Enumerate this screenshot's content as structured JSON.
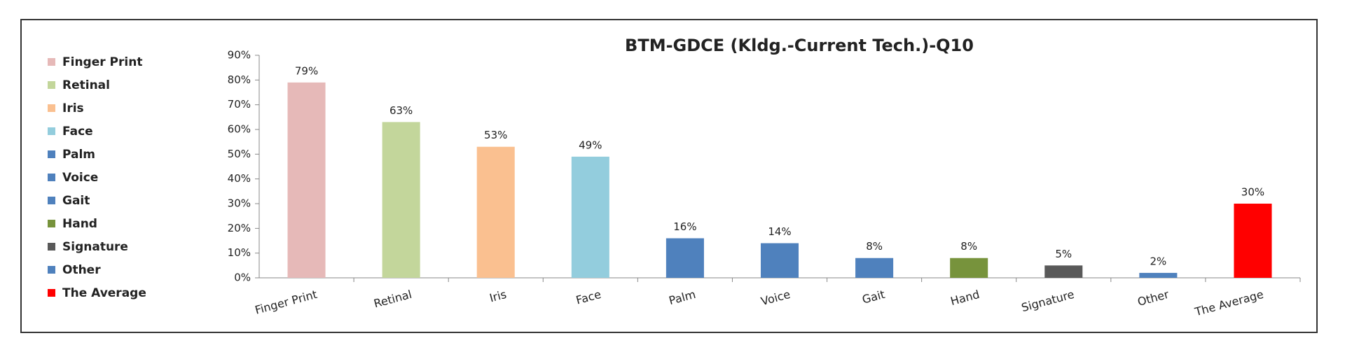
{
  "chart_data": {
    "type": "bar",
    "title": "BTM-GDCE  (Kldg.-Current Tech.)-Q10",
    "categories": [
      "Finger Print",
      "Retinal",
      "Iris",
      "Face",
      "Palm",
      "Voice",
      "Gait",
      "Hand",
      "Signature",
      "Other",
      "The Average"
    ],
    "values": [
      79,
      63,
      53,
      49,
      16,
      14,
      8,
      8,
      5,
      2,
      30
    ],
    "value_labels": [
      "79%",
      "63%",
      "53%",
      "49%",
      "16%",
      "14%",
      "8%",
      "8%",
      "5%",
      "2%",
      "30%"
    ],
    "colors": [
      "#e6b9b8",
      "#c3d69b",
      "#fac090",
      "#93cddd",
      "#4f81bd",
      "#4f81bd",
      "#4f81bd",
      "#77933c",
      "#595959",
      "#4f81bd",
      "#ff0000"
    ],
    "ylim": [
      0,
      90
    ],
    "yticks": [
      {
        "value": 0,
        "label": "0%"
      },
      {
        "value": 10,
        "label": "10%"
      },
      {
        "value": 20,
        "label": "20%"
      },
      {
        "value": 30,
        "label": "30%"
      },
      {
        "value": 40,
        "label": "40%"
      },
      {
        "value": 50,
        "label": "50%"
      },
      {
        "value": 60,
        "label": "60%"
      },
      {
        "value": 70,
        "label": "70%"
      },
      {
        "value": 80,
        "label": "80%"
      },
      {
        "value": 90,
        "label": "90%"
      }
    ],
    "legend": "left"
  }
}
